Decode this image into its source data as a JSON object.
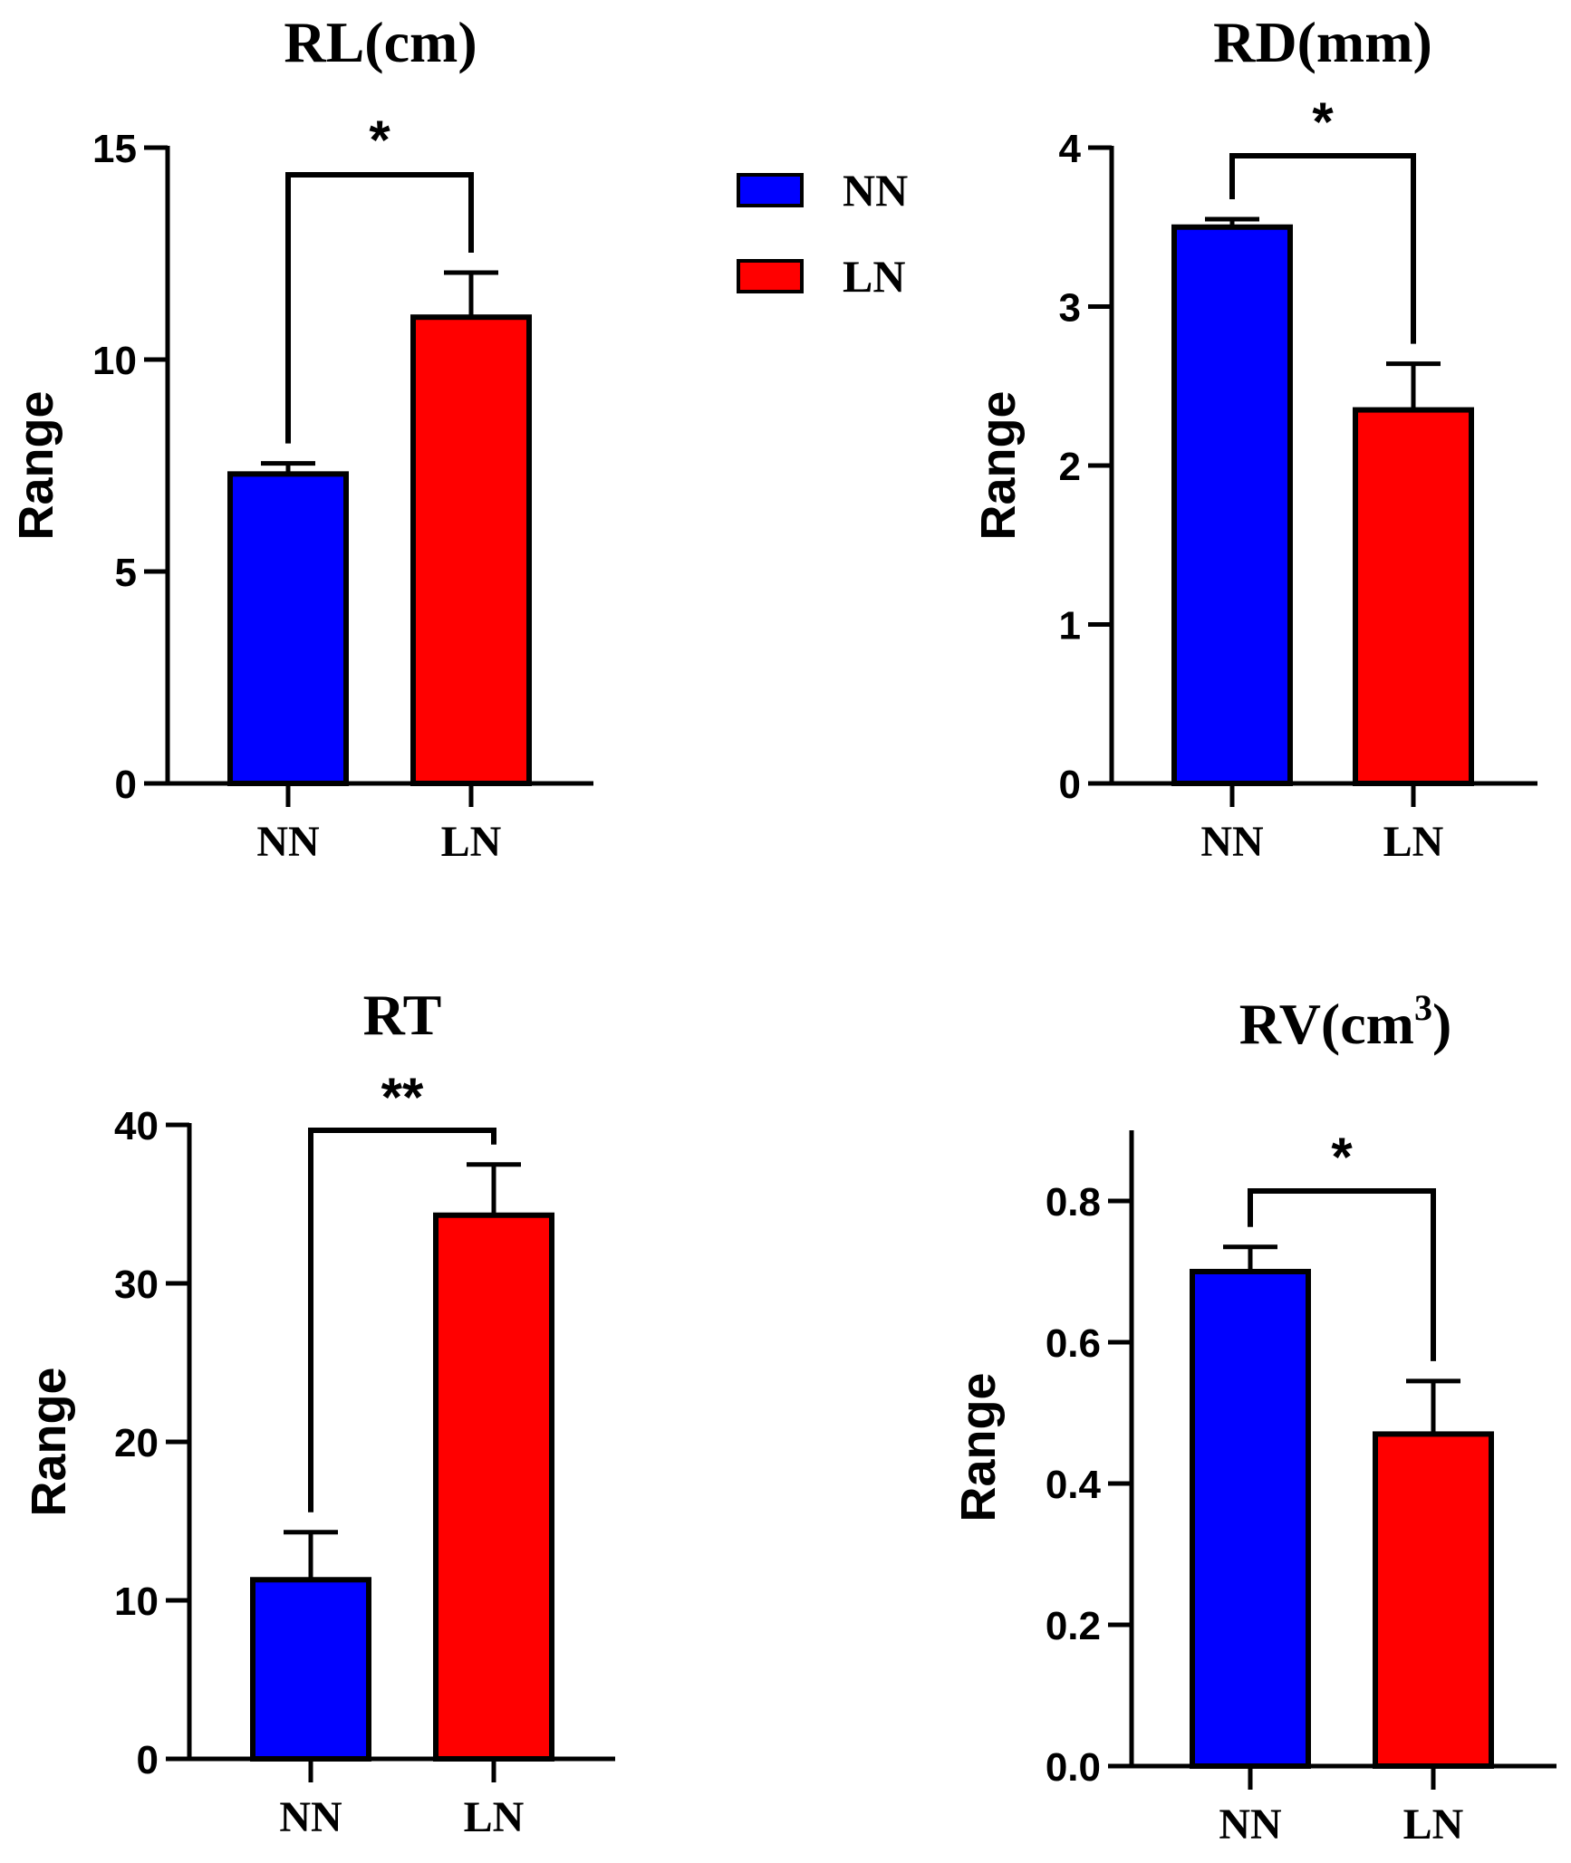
{
  "legend": {
    "items": [
      {
        "label": "NN",
        "color": "#0000ff"
      },
      {
        "label": "LN",
        "color": "#ff0000"
      }
    ]
  },
  "chart_data": [
    {
      "id": "rl",
      "type": "bar",
      "title": "RL(cm)",
      "title_sup": "",
      "title_after": "",
      "ylabel": "Range",
      "categories": [
        "NN",
        "LN"
      ],
      "colors": [
        "#0000ff",
        "#ff0000"
      ],
      "values": [
        7.3,
        11.0
      ],
      "errors": [
        0.25,
        1.05
      ],
      "ylim": [
        0,
        15
      ],
      "yticks": [
        "0",
        "5",
        "10",
        "15"
      ],
      "ytick_values": [
        0,
        5,
        10,
        15
      ],
      "significance": "*"
    },
    {
      "id": "rd",
      "type": "bar",
      "title": "RD(mm)",
      "title_sup": "",
      "title_after": "",
      "ylabel": "Range",
      "categories": [
        "NN",
        "LN"
      ],
      "colors": [
        "#0000ff",
        "#ff0000"
      ],
      "values": [
        3.5,
        2.35
      ],
      "errors": [
        0.05,
        0.29
      ],
      "ylim": [
        0,
        4
      ],
      "yticks": [
        "0",
        "1",
        "2",
        "3",
        "4"
      ],
      "ytick_values": [
        0,
        1,
        2,
        3,
        4
      ],
      "significance": "*"
    },
    {
      "id": "rt",
      "type": "bar",
      "title": "RT",
      "title_sup": "",
      "title_after": "",
      "ylabel": "Range",
      "categories": [
        "NN",
        "LN"
      ],
      "colors": [
        "#0000ff",
        "#ff0000"
      ],
      "values": [
        11.3,
        34.3
      ],
      "errors": [
        3.0,
        3.2
      ],
      "ylim": [
        0,
        40
      ],
      "yticks": [
        "0",
        "10",
        "20",
        "30",
        "40"
      ],
      "ytick_values": [
        0,
        10,
        20,
        30,
        40
      ],
      "significance": "**"
    },
    {
      "id": "rv",
      "type": "bar",
      "title": "RV(cm",
      "title_sup": "3",
      "title_after": ")",
      "ylabel": "Range",
      "categories": [
        "NN",
        "LN"
      ],
      "colors": [
        "#0000ff",
        "#ff0000"
      ],
      "values": [
        0.7,
        0.47
      ],
      "errors": [
        0.035,
        0.075
      ],
      "ylim": [
        0,
        0.9
      ],
      "yticks": [
        "0.0",
        "0.2",
        "0.4",
        "0.6",
        "0.8"
      ],
      "ytick_values": [
        0,
        0.2,
        0.4,
        0.6,
        0.8
      ],
      "significance": "*"
    }
  ]
}
